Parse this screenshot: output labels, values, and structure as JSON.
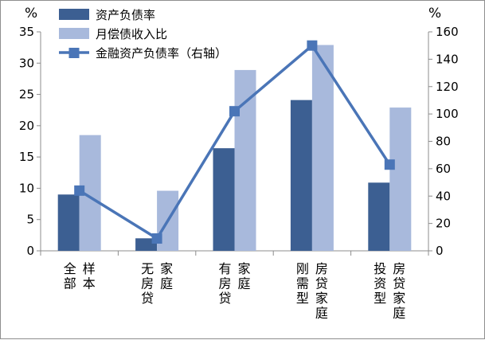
{
  "chart_data": {
    "type": "bar",
    "categories": [
      [
        "全部",
        "样本"
      ],
      [
        "无房贷",
        "家庭"
      ],
      [
        "有房贷",
        "家庭"
      ],
      [
        "刚需型",
        "房贷家庭"
      ],
      [
        "投资型",
        "房贷家庭"
      ]
    ],
    "category_labels": [
      "全部样本",
      "无房贷家庭",
      "有房贷家庭",
      "刚需型房贷家庭",
      "投资型房贷家庭"
    ],
    "series": [
      {
        "name": "资产负债率",
        "kind": "bar",
        "axis": "left",
        "color": "#3c5f92",
        "values": [
          9,
          2,
          16.4,
          24.1,
          10.9
        ]
      },
      {
        "name": "月偿债收入比",
        "kind": "bar",
        "axis": "left",
        "color": "#a8b9dc",
        "values": [
          18.5,
          9.6,
          28.9,
          32.9,
          22.9
        ]
      },
      {
        "name": "金融资产负债率（右轴）",
        "kind": "line",
        "axis": "right",
        "color": "#4a75b7",
        "values": [
          44,
          9,
          102,
          150,
          63
        ]
      }
    ],
    "left_axis": {
      "unit": "%",
      "min": 0,
      "max": 35,
      "step": 5,
      "ticks": [
        "0",
        "5",
        "10",
        "15",
        "20",
        "25",
        "30",
        "35"
      ]
    },
    "right_axis": {
      "unit": "%",
      "min": 0,
      "max": 160,
      "step": 20,
      "ticks": [
        "0",
        "20",
        "40",
        "60",
        "80",
        "100",
        "120",
        "140",
        "160"
      ]
    },
    "legend_position": "top-left",
    "grid": false
  }
}
